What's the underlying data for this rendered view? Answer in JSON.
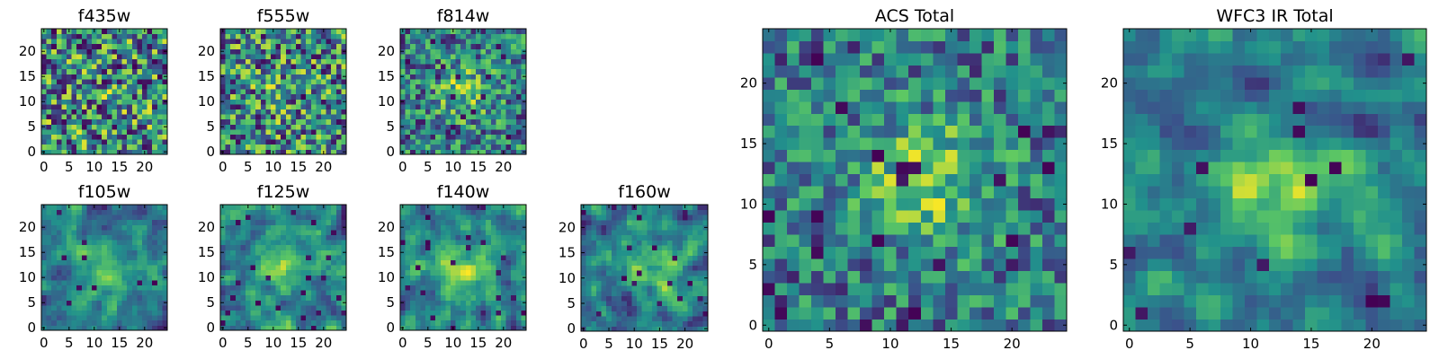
{
  "colormap": [
    "#440154",
    "#3b528b",
    "#21918c",
    "#5ec962",
    "#fde725"
  ],
  "chart_data": [
    {
      "type": "heatmap",
      "title": "f435w",
      "grid": false,
      "size": 25,
      "xlim": [
        -0.5,
        24.5
      ],
      "ylim": [
        -0.5,
        24.5
      ],
      "xticks": [
        0,
        5,
        10,
        15,
        20
      ],
      "yticks": [
        0,
        5,
        10,
        15,
        20
      ],
      "xticklabels": [
        "0",
        "5",
        "10",
        "15",
        "20"
      ],
      "yticklabels": [
        "0",
        "5",
        "10",
        "15",
        "20"
      ],
      "xlabel": "",
      "ylabel": "",
      "texture": "noise",
      "peak": [
        12,
        12
      ],
      "peak_strength": 0.05,
      "seed": 11
    },
    {
      "type": "heatmap",
      "title": "f555w",
      "grid": false,
      "size": 25,
      "xlim": [
        -0.5,
        24.5
      ],
      "ylim": [
        -0.5,
        24.5
      ],
      "xticks": [
        0,
        5,
        10,
        15,
        20
      ],
      "yticks": [
        0,
        5,
        10,
        15,
        20
      ],
      "xticklabels": [
        "0",
        "5",
        "10",
        "15",
        "20"
      ],
      "yticklabels": [
        "0",
        "5",
        "10",
        "15",
        "20"
      ],
      "xlabel": "",
      "ylabel": "",
      "texture": "noise",
      "peak": [
        12,
        12
      ],
      "peak_strength": 0.1,
      "seed": 23
    },
    {
      "type": "heatmap",
      "title": "f814w",
      "grid": false,
      "size": 25,
      "xlim": [
        -0.5,
        24.5
      ],
      "ylim": [
        -0.5,
        24.5
      ],
      "xticks": [
        0,
        5,
        10,
        15,
        20
      ],
      "yticks": [
        0,
        5,
        10,
        15,
        20
      ],
      "xticklabels": [
        "0",
        "5",
        "10",
        "15",
        "20"
      ],
      "yticklabels": [
        "0",
        "5",
        "10",
        "15",
        "20"
      ],
      "xlabel": "",
      "ylabel": "",
      "texture": "noise",
      "peak": [
        12,
        12
      ],
      "peak_strength": 0.3,
      "seed": 37
    },
    {
      "type": "heatmap",
      "title": "f105w",
      "grid": false,
      "size": 25,
      "xlim": [
        -0.5,
        24.5
      ],
      "ylim": [
        -0.5,
        24.5
      ],
      "xticks": [
        0,
        5,
        10,
        15,
        20
      ],
      "yticks": [
        0,
        5,
        10,
        15,
        20
      ],
      "xticklabels": [
        "0",
        "5",
        "10",
        "15",
        "20"
      ],
      "yticklabels": [
        "0",
        "5",
        "10",
        "15",
        "20"
      ],
      "xlabel": "",
      "ylabel": "",
      "texture": "smooth",
      "peak": [
        13,
        11
      ],
      "peak_strength": 0.35,
      "seed": 41
    },
    {
      "type": "heatmap",
      "title": "f125w",
      "grid": false,
      "size": 25,
      "xlim": [
        -0.5,
        24.5
      ],
      "ylim": [
        -0.5,
        24.5
      ],
      "xticks": [
        0,
        5,
        10,
        15,
        20
      ],
      "yticks": [
        0,
        5,
        10,
        15,
        20
      ],
      "xticklabels": [
        "0",
        "5",
        "10",
        "15",
        "20"
      ],
      "yticklabels": [
        "0",
        "5",
        "10",
        "15",
        "20"
      ],
      "xlabel": "",
      "ylabel": "",
      "texture": "smooth",
      "peak": [
        12,
        12
      ],
      "peak_strength": 0.25,
      "seed": 53
    },
    {
      "type": "heatmap",
      "title": "f140w",
      "grid": false,
      "size": 25,
      "xlim": [
        -0.5,
        24.5
      ],
      "ylim": [
        -0.5,
        24.5
      ],
      "xticks": [
        0,
        5,
        10,
        15,
        20
      ],
      "yticks": [
        0,
        5,
        10,
        15,
        20
      ],
      "xticklabels": [
        "0",
        "5",
        "10",
        "15",
        "20"
      ],
      "yticklabels": [
        "0",
        "5",
        "10",
        "15",
        "20"
      ],
      "xlabel": "",
      "ylabel": "",
      "texture": "smooth",
      "peak": [
        12,
        12
      ],
      "peak_strength": 0.3,
      "seed": 67
    },
    {
      "type": "heatmap",
      "title": "f160w",
      "grid": false,
      "size": 25,
      "xlim": [
        -0.5,
        24.5
      ],
      "ylim": [
        -0.5,
        24.5
      ],
      "xticks": [
        0,
        5,
        10,
        15,
        20
      ],
      "yticks": [
        0,
        5,
        10,
        15,
        20
      ],
      "xticklabels": [
        "0",
        "5",
        "10",
        "15",
        "20"
      ],
      "yticklabels": [
        "0",
        "5",
        "10",
        "15",
        "20"
      ],
      "xlabel": "",
      "ylabel": "",
      "texture": "smooth",
      "peak": [
        13,
        12
      ],
      "peak_strength": 0.35,
      "seed": 79
    },
    {
      "type": "heatmap",
      "title": "ACS Total",
      "grid": false,
      "size": 25,
      "xlim": [
        -0.5,
        24.5
      ],
      "ylim": [
        -0.5,
        24.5
      ],
      "xticks": [
        0,
        5,
        10,
        15,
        20
      ],
      "yticks": [
        0,
        5,
        10,
        15,
        20
      ],
      "xticklabels": [
        "0",
        "5",
        "10",
        "15",
        "20"
      ],
      "yticklabels": [
        "0",
        "5",
        "10",
        "15",
        "20"
      ],
      "xlabel": "",
      "ylabel": "",
      "texture": "noise",
      "peak": [
        13,
        12
      ],
      "peak_strength": 0.4,
      "seed": 83
    },
    {
      "type": "heatmap",
      "title": "WFC3 IR Total",
      "grid": false,
      "size": 25,
      "xlim": [
        -0.5,
        24.5
      ],
      "ylim": [
        -0.5,
        24.5
      ],
      "xticks": [
        0,
        5,
        10,
        15,
        20
      ],
      "yticks": [
        0,
        5,
        10,
        15,
        20
      ],
      "xticklabels": [
        "0",
        "5",
        "10",
        "15",
        "20"
      ],
      "yticklabels": [
        "0",
        "5",
        "10",
        "15",
        "20"
      ],
      "xlabel": "",
      "ylabel": "",
      "texture": "smooth",
      "peak": [
        13,
        12
      ],
      "peak_strength": 0.4,
      "seed": 97
    }
  ]
}
